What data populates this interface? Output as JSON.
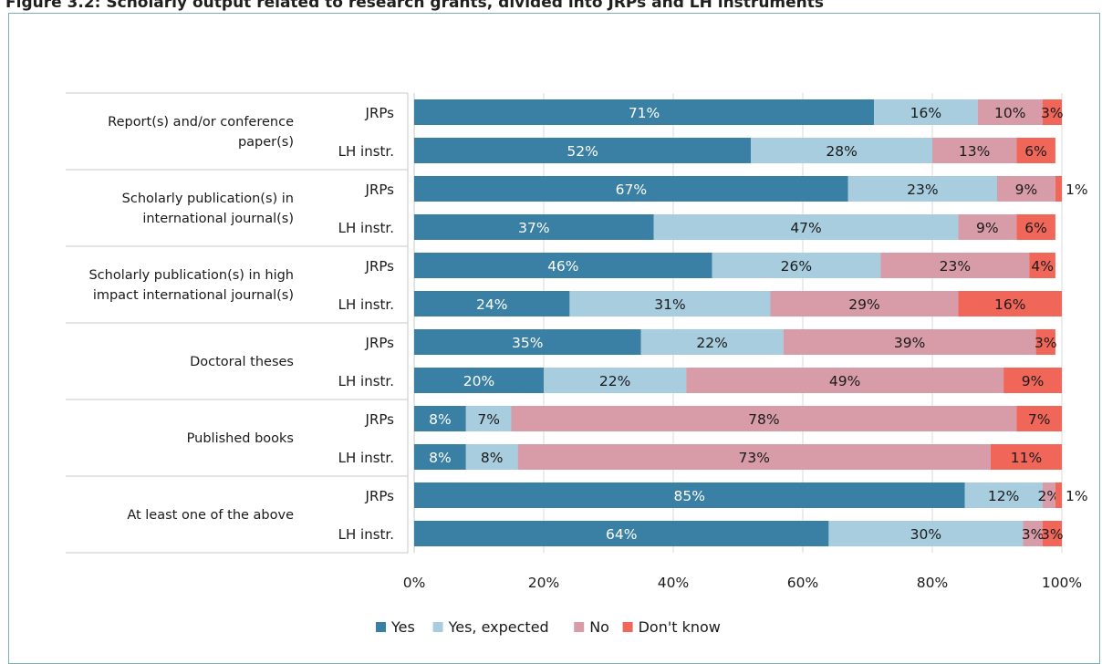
{
  "figure": {
    "caption": "Figure 3.2: Scholarly output related to research grants, divided into JRPs and LH instruments"
  },
  "chart_data": {
    "type": "bar",
    "orientation": "horizontal",
    "stacked": "100%",
    "series_names": [
      "Yes",
      "Yes, expected",
      "No",
      "Don't know"
    ],
    "colors": [
      "#3a80a4",
      "#a8cddf",
      "#d79ca8",
      "#f0675a"
    ],
    "groups": [
      {
        "label": "Report(s) and/or conference paper(s)",
        "label_lines": [
          "Report(s) and/or conference",
          "paper(s)"
        ],
        "rows": [
          {
            "name": "JRPs",
            "values": [
              71,
              16,
              10,
              3
            ]
          },
          {
            "name": "LH instr.",
            "values": [
              52,
              28,
              13,
              6
            ]
          }
        ]
      },
      {
        "label": "Scholarly publication(s) in international journal(s)",
        "label_lines": [
          "Scholarly publication(s) in",
          "international journal(s)"
        ],
        "rows": [
          {
            "name": "JRPs",
            "values": [
              67,
              23,
              9,
              1
            ]
          },
          {
            "name": "LH instr.",
            "values": [
              37,
              47,
              9,
              6
            ]
          }
        ]
      },
      {
        "label": "Scholarly publication(s) in high impact international journal(s)",
        "label_lines": [
          "Scholarly publication(s) in high",
          "impact international journal(s)"
        ],
        "rows": [
          {
            "name": "JRPs",
            "values": [
              46,
              26,
              23,
              4
            ]
          },
          {
            "name": "LH instr.",
            "values": [
              24,
              31,
              29,
              16
            ]
          }
        ]
      },
      {
        "label": "Doctoral theses",
        "label_lines": [
          "Doctoral theses"
        ],
        "rows": [
          {
            "name": "JRPs",
            "values": [
              35,
              22,
              39,
              3
            ]
          },
          {
            "name": "LH instr.",
            "values": [
              20,
              22,
              49,
              9
            ]
          }
        ]
      },
      {
        "label": "Published books",
        "label_lines": [
          "Published books"
        ],
        "rows": [
          {
            "name": "JRPs",
            "values": [
              8,
              7,
              78,
              7
            ]
          },
          {
            "name": "LH instr.",
            "values": [
              8,
              8,
              73,
              11
            ]
          }
        ]
      },
      {
        "label": "At least one of the above",
        "label_lines": [
          "At least one of the above"
        ],
        "rows": [
          {
            "name": "JRPs",
            "values": [
              85,
              12,
              2,
              1
            ]
          },
          {
            "name": "LH instr.",
            "values": [
              64,
              30,
              3,
              3
            ]
          }
        ]
      }
    ],
    "x_ticks": [
      "0%",
      "20%",
      "40%",
      "60%",
      "80%",
      "100%"
    ],
    "xlim": [
      0,
      100
    ],
    "grid": true,
    "legend_position": "bottom"
  }
}
